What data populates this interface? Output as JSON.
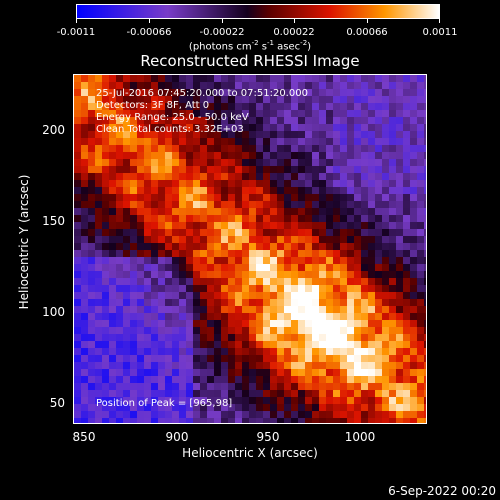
{
  "colorbar": {
    "tick_labels": [
      "-0.0011",
      "-0.00066",
      "-0.00022",
      "0.00022",
      "0.00066",
      "0.0011"
    ],
    "units_text": "(photons cm",
    "units_exp1": "-2",
    "units_mid": " s",
    "units_exp2": "-1",
    "units_mid2": " asec",
    "units_exp3": "-2",
    "units_end": ")"
  },
  "title": "Reconstructed RHESSI Image",
  "annotations": {
    "time_range": "25-Jul-2016 07:45:20.000 to 07:51:20.000",
    "detectors": "Detectors: 3F 8F, Att 0",
    "energy_range": "Energy Range: 25.0 - 50.0 keV",
    "clean_counts": "Clean    Total counts: 3.32E+03",
    "peak_position": "Position of Peak = [965,98]"
  },
  "axes": {
    "x_label": "Heliocentric X (arcsec)",
    "y_label": "Heliocentric Y (arcsec)",
    "x_ticks": [
      "850",
      "900",
      "950",
      "1000"
    ],
    "y_ticks": [
      "200",
      "150",
      "100",
      "50"
    ]
  },
  "timestamp": "6-Sep-2022 00:20",
  "chart_data": {
    "type": "heatmap",
    "title": "Reconstructed RHESSI Image",
    "xlabel": "Heliocentric X (arcsec)",
    "ylabel": "Heliocentric Y (arcsec)",
    "xlim": [
      843,
      1040
    ],
    "ylim": [
      38,
      232
    ],
    "colorscale_range": [
      -0.0011,
      0.0011
    ],
    "peak": [
      965,
      98
    ]
  }
}
